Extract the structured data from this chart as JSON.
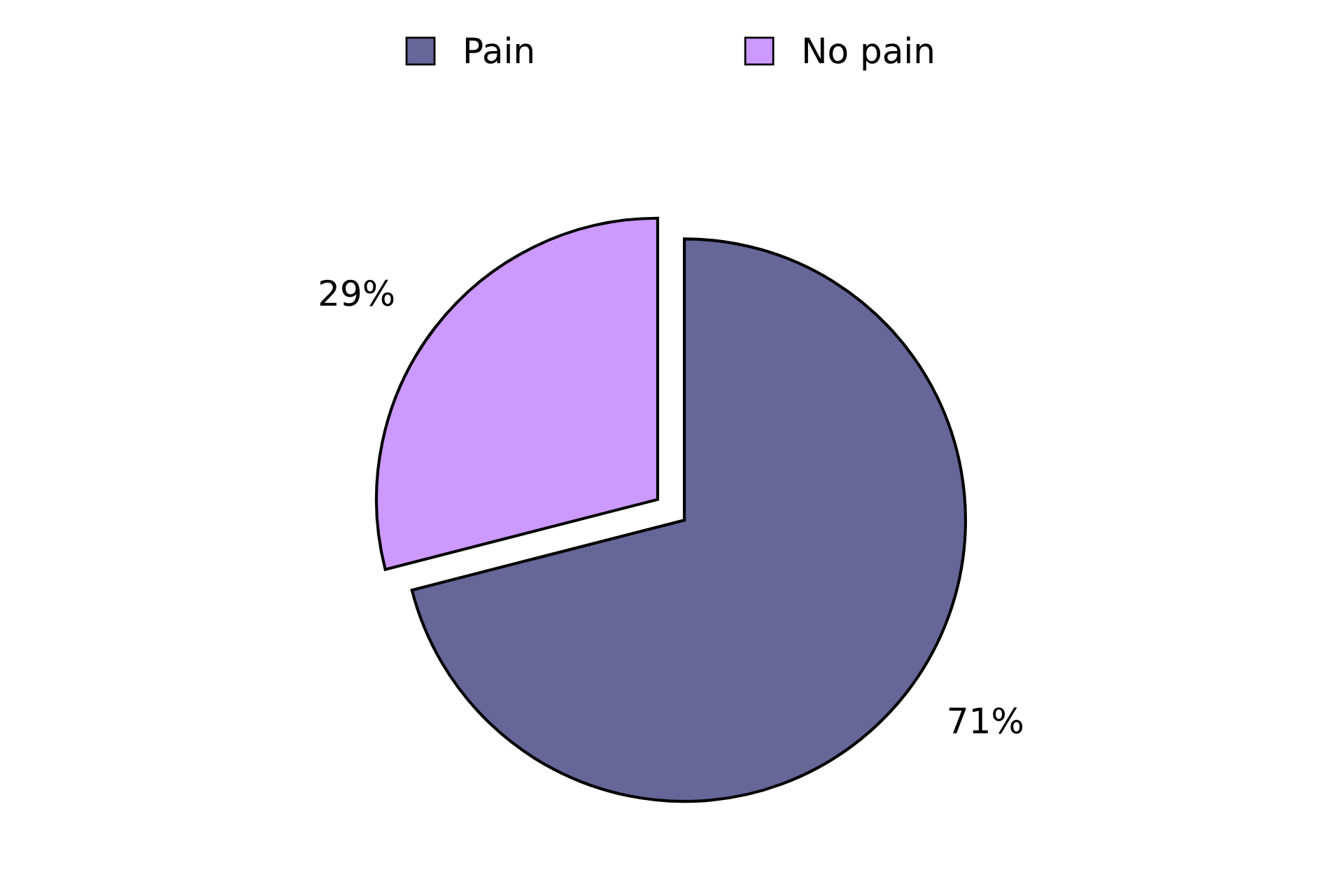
{
  "chart_data": {
    "type": "pie",
    "categories": [
      "Pain",
      "No pain"
    ],
    "values": [
      71,
      29
    ],
    "colors": [
      "#666699",
      "#cc99ff"
    ],
    "value_labels": [
      "71%",
      "29%"
    ],
    "legend": "top"
  }
}
